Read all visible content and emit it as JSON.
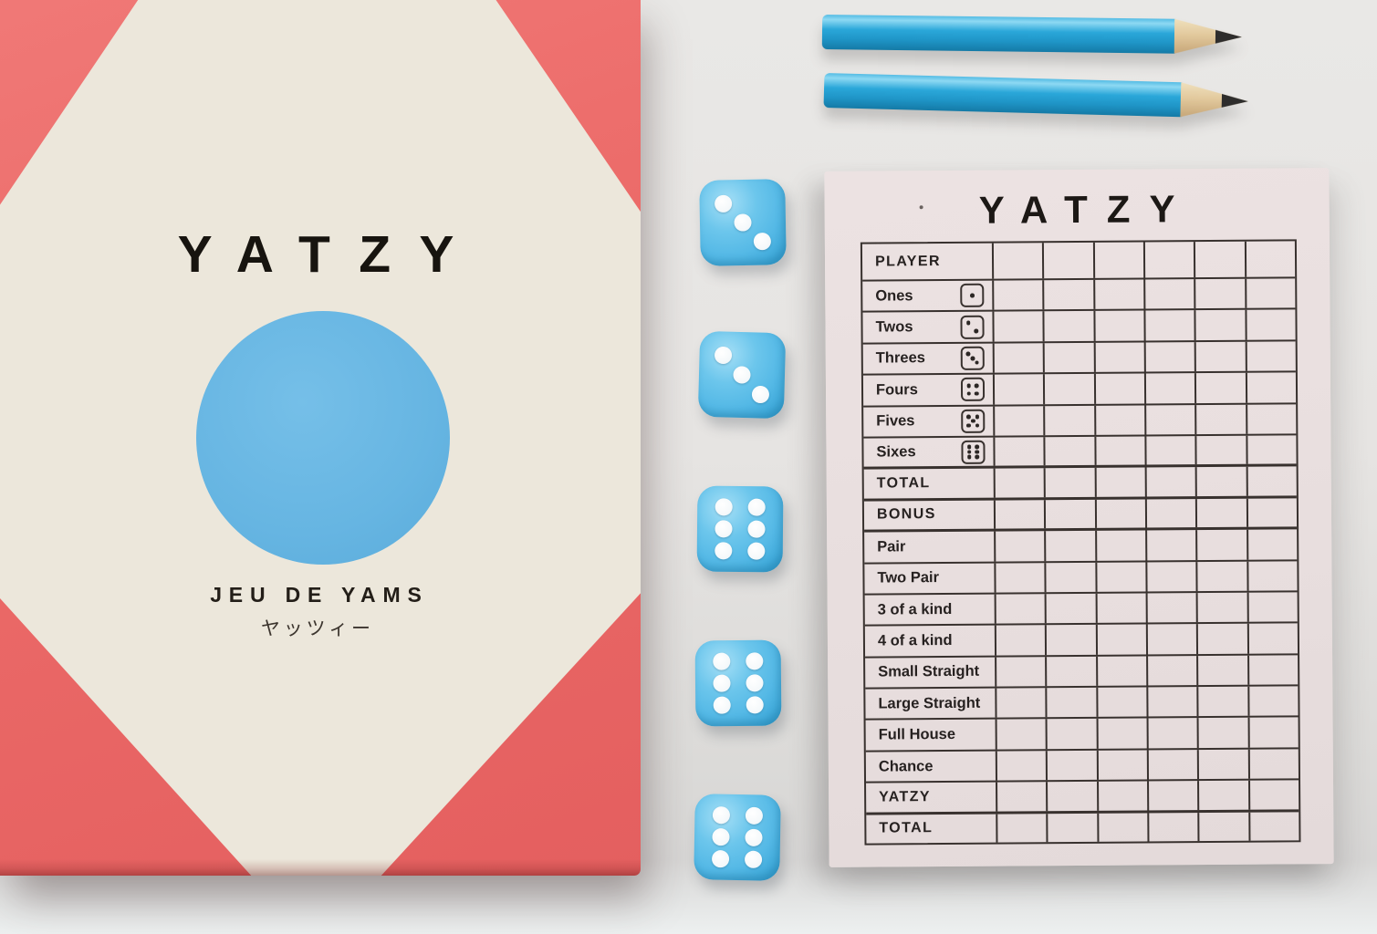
{
  "box": {
    "title": "YATZY",
    "subtitle_fr": "JEU DE YAMS",
    "subtitle_jp": "ヤッツィー"
  },
  "pencils": {
    "count": 2,
    "color": "#2aa7d9"
  },
  "dice": {
    "values": [
      3,
      3,
      6,
      6,
      6
    ],
    "color": "#55b9e6",
    "pip_color": "#ffffff"
  },
  "scorepad": {
    "title": "YATZY",
    "columns": 6,
    "rows": [
      {
        "label": "PLAYER",
        "die": 0,
        "caps": true,
        "thick": false
      },
      {
        "label": "Ones",
        "die": 1,
        "caps": false,
        "thick": false
      },
      {
        "label": "Twos",
        "die": 2,
        "caps": false,
        "thick": false
      },
      {
        "label": "Threes",
        "die": 3,
        "caps": false,
        "thick": false
      },
      {
        "label": "Fours",
        "die": 4,
        "caps": false,
        "thick": false
      },
      {
        "label": "Fives",
        "die": 5,
        "caps": false,
        "thick": false
      },
      {
        "label": "Sixes",
        "die": 6,
        "caps": false,
        "thick": true
      },
      {
        "label": "TOTAL",
        "die": 0,
        "caps": true,
        "thick": true
      },
      {
        "label": "BONUS",
        "die": 0,
        "caps": true,
        "thick": true
      },
      {
        "label": "Pair",
        "die": 0,
        "caps": false,
        "thick": false
      },
      {
        "label": "Two Pair",
        "die": 0,
        "caps": false,
        "thick": false
      },
      {
        "label": "3 of a kind",
        "die": 0,
        "caps": false,
        "thick": false
      },
      {
        "label": "4 of a kind",
        "die": 0,
        "caps": false,
        "thick": false
      },
      {
        "label": "Small Straight",
        "die": 0,
        "caps": false,
        "thick": false
      },
      {
        "label": "Large Straight",
        "die": 0,
        "caps": false,
        "thick": false
      },
      {
        "label": "Full House",
        "die": 0,
        "caps": false,
        "thick": false
      },
      {
        "label": "Chance",
        "die": 0,
        "caps": false,
        "thick": false
      },
      {
        "label": "YATZY",
        "die": 0,
        "caps": true,
        "thick": true
      },
      {
        "label": "TOTAL",
        "die": 0,
        "caps": true,
        "thick": false
      }
    ]
  },
  "colors": {
    "box_red": "#ec6b69",
    "box_cream": "#ece7db",
    "circle_blue": "#66b5e2",
    "dice_blue": "#55b9e6",
    "pencil_blue": "#2aa7d9",
    "pad_pink": "#e9dfdf",
    "line_dark": "#38312e",
    "bg_gray": "#e9e8e6"
  }
}
